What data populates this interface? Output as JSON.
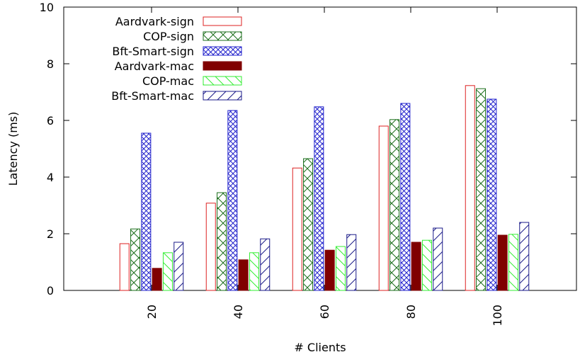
{
  "chart_data": {
    "type": "bar",
    "xlabel": "# Clients",
    "ylabel": "Latency (ms)",
    "ylim": [
      0,
      10
    ],
    "yticks": [
      "0",
      "2",
      "4",
      "6",
      "8",
      "10"
    ],
    "categories": [
      "20",
      "40",
      "60",
      "80",
      "100"
    ],
    "legend_position": "top-left",
    "grid": false,
    "series": [
      {
        "name": "Aardvark-sign",
        "color": "#dd2222",
        "pattern": "empty",
        "values": [
          1.65,
          3.08,
          4.32,
          5.8,
          7.23
        ]
      },
      {
        "name": "COP-sign",
        "color": "#1b6e1b",
        "pattern": "crosshatch",
        "values": [
          2.17,
          3.45,
          4.65,
          6.03,
          7.12
        ]
      },
      {
        "name": "Bft-Smart-sign",
        "color": "#2222cc",
        "pattern": "crosshatch",
        "values": [
          5.55,
          6.35,
          6.48,
          6.6,
          6.75
        ]
      },
      {
        "name": "Aardvark-mac",
        "color": "#800000",
        "pattern": "solid",
        "values": [
          0.78,
          1.08,
          1.42,
          1.7,
          1.95
        ]
      },
      {
        "name": "COP-mac",
        "color": "#33ee33",
        "pattern": "backslash",
        "values": [
          1.33,
          1.33,
          1.55,
          1.77,
          1.98
        ]
      },
      {
        "name": "Bft-Smart-mac",
        "color": "#1a1a88",
        "pattern": "slash",
        "values": [
          1.7,
          1.82,
          1.97,
          2.2,
          2.4
        ]
      }
    ]
  }
}
